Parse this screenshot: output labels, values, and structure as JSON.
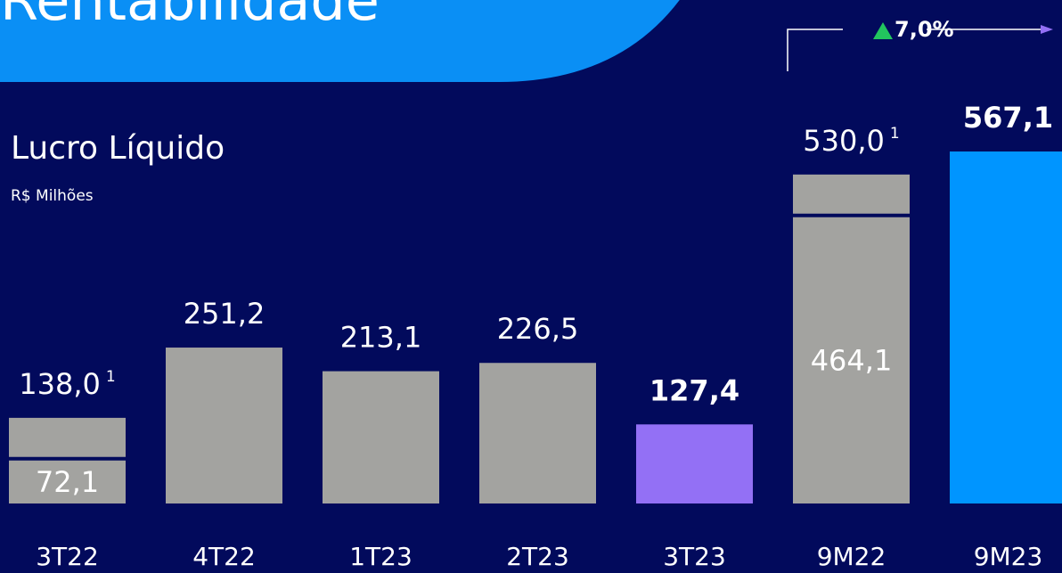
{
  "header": {
    "title": "Rentabilidade"
  },
  "chart_data": {
    "type": "bar",
    "title": "Lucro Líquido",
    "subtitle": "R$ Milhões",
    "categories": [
      "3T22",
      "4T22",
      "1T23",
      "2T23",
      "3T23",
      "9M22",
      "9M23"
    ],
    "values": [
      138.0,
      251.2,
      213.1,
      226.5,
      127.4,
      530.0,
      567.1
    ],
    "value_labels": [
      "138,0",
      "251,2",
      "213,1",
      "226,5",
      "127,4",
      "530,0",
      "567,1"
    ],
    "footnote_marks": [
      "1",
      null,
      null,
      null,
      null,
      "1",
      null
    ],
    "inner_values": [
      72.1,
      null,
      null,
      null,
      null,
      464.1,
      null
    ],
    "inner_value_labels": [
      "72,1",
      null,
      null,
      null,
      null,
      "464,1",
      null
    ],
    "colors": [
      "#a3a3a0",
      "#a3a3a0",
      "#a3a3a0",
      "#a3a3a0",
      "#9370f5",
      "#a3a3a0",
      "#0095ff"
    ],
    "bold": [
      false,
      false,
      false,
      false,
      true,
      false,
      true
    ],
    "ylim": [
      0,
      567.1
    ],
    "annotation": "7,0%"
  }
}
